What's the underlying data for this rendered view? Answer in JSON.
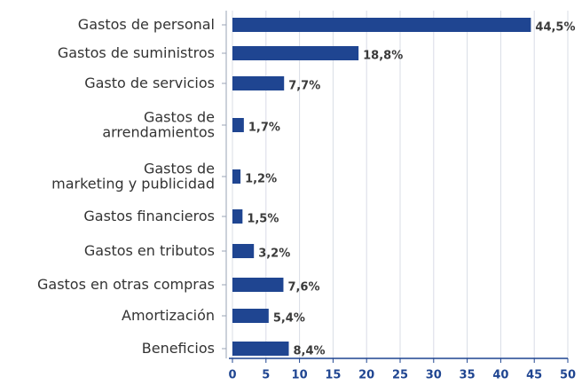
{
  "chart_data": {
    "type": "bar",
    "orientation": "horizontal",
    "categories": [
      "Gastos de personal",
      "Gastos de suministros",
      "Gasto de servicios",
      "Gastos de\narrendamientos",
      "Gastos de\nmarketing y publicidad",
      "Gastos financieros",
      "Gastos en tributos",
      "Gastos en otras compras",
      "Amortización",
      "Beneficios"
    ],
    "values": [
      44.5,
      18.8,
      7.7,
      1.7,
      1.2,
      1.5,
      3.2,
      7.6,
      5.4,
      8.4
    ],
    "value_labels": [
      "44,5%",
      "18,8%",
      "7,7%",
      "1,7%",
      "1,2%",
      "1,5%",
      "3,2%",
      "7,6%",
      "5,4%",
      "8,4%"
    ],
    "color": "#1f4591",
    "xlim": [
      0,
      50
    ],
    "xticks": [
      0,
      5,
      10,
      15,
      20,
      25,
      30,
      35,
      40,
      45,
      50
    ],
    "grid": true
  }
}
